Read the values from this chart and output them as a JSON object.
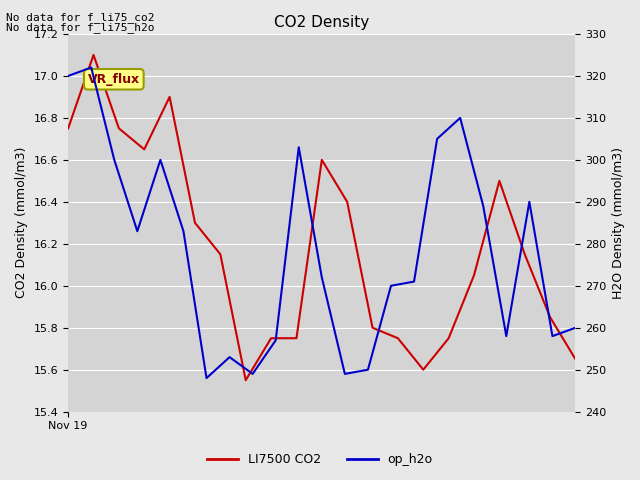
{
  "title": "CO2 Density",
  "ylabel_left": "CO2 Density (mmol/m3)",
  "ylabel_right": "H2O Density (mmol/m3)",
  "text_upper_left_line1": "No data for f_li75_co2",
  "text_upper_left_line2": "No data for f_li75_h2o",
  "annotation_box": "VR_flux",
  "x_tick_label": "Nov 19",
  "legend_labels": [
    "LI7500 CO2",
    "op_h2o"
  ],
  "co2_color": "#cc0000",
  "h2o_color": "#0000cc",
  "ylim_left": [
    15.4,
    17.2
  ],
  "ylim_right": [
    240,
    330
  ],
  "yticks_left": [
    15.4,
    15.6,
    15.8,
    16.0,
    16.2,
    16.4,
    16.6,
    16.8,
    17.0,
    17.2
  ],
  "yticks_right": [
    240,
    250,
    260,
    270,
    280,
    290,
    300,
    310,
    320,
    330
  ],
  "fig_bg_color": "#e8e8e8",
  "plot_bg_color": "#d4d4d4",
  "grid_color": "#ffffff",
  "co2_y": [
    16.75,
    17.1,
    16.75,
    16.65,
    16.9,
    16.3,
    16.15,
    15.55,
    15.75,
    15.75,
    16.6,
    16.4,
    15.8,
    15.75,
    15.6,
    15.75,
    16.05,
    16.5,
    16.15,
    15.85,
    15.65
  ],
  "h2o_y": [
    320,
    322,
    300,
    283,
    300,
    283,
    248,
    253,
    249,
    257,
    303,
    272,
    249,
    250,
    270,
    271,
    305,
    310,
    289,
    258,
    290,
    258,
    260
  ]
}
